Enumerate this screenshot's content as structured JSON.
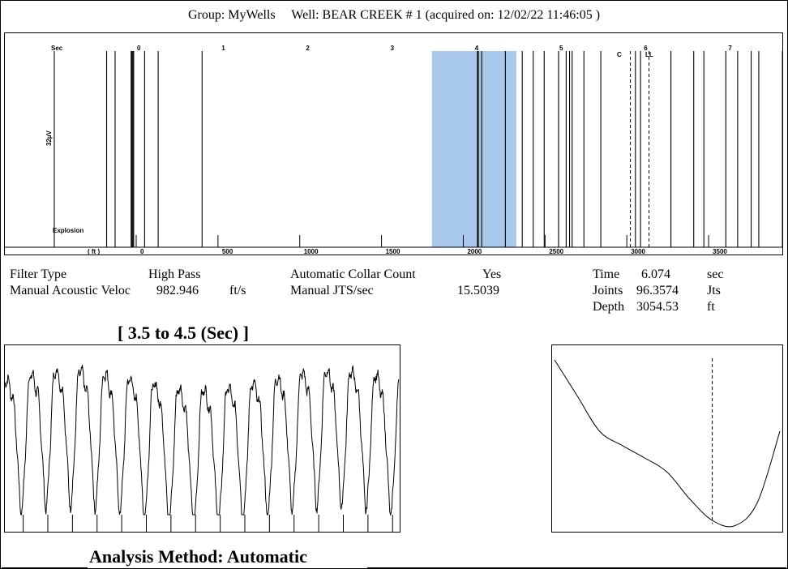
{
  "header": {
    "group_text": "Group: MyWells",
    "well_text": "Well: BEAR CREEK # 1 (acquired on: 12/02/22 11:46:05 )"
  },
  "main_chart": {
    "sec_label": "Sec",
    "ft_label": "( ft )",
    "gain_label": "32µV",
    "explosion_label": "Explosion",
    "collar_labels": [
      "C",
      "LL"
    ],
    "sec_ticks": [
      "0",
      "1",
      "2",
      "3",
      "4",
      "5",
      "6",
      "7"
    ],
    "ft_ticks": [
      "0",
      "500",
      "1000",
      "1500",
      "2000",
      "2500",
      "3000",
      "3500"
    ]
  },
  "params": {
    "filter_type_label": "Filter Type",
    "filter_type_value": "High Pass",
    "velocity_label": "Manual Acoustic Veloc",
    "velocity_value": "982.946",
    "velocity_unit": "ft/s",
    "collar_count_label": "Automatic Collar Count",
    "collar_count_value": "Yes",
    "jts_label": "Manual JTS/sec",
    "jts_value": "15.5039",
    "time_label": "Time",
    "time_value": "6.074",
    "time_unit": "sec",
    "joints_label": "Joints",
    "joints_value": "96.3574",
    "joints_unit": "Jts",
    "depth_label": "Depth",
    "depth_value": "3054.53",
    "depth_unit": "ft"
  },
  "zoom_title": "[ 3.5  to  4.5 (Sec) ]",
  "analysis_method": "Analysis Method:   Automatic",
  "colors": {
    "highlight": "#a9c9ec",
    "line": "#000000"
  },
  "chart_data": [
    {
      "type": "line",
      "name": "acoustic-trace",
      "x_unit": "sec",
      "xlim": [
        -1.0,
        7.8
      ],
      "highlight_range_sec": [
        3.5,
        4.5
      ],
      "sec_ticks": [
        0,
        1,
        2,
        3,
        4,
        5,
        6,
        7
      ],
      "ft_ticks": [
        0,
        500,
        1000,
        1500,
        2000,
        2500,
        3000,
        3500
      ],
      "event_lines_sec": [
        -0.97,
        -0.35,
        -0.25,
        -0.06,
        -0.05,
        -0.04,
        -0.03,
        0.1,
        0.26,
        0.78,
        4.04,
        4.05,
        4.09,
        4.37,
        4.57,
        4.7,
        4.83,
        5.0,
        5.09,
        5.13,
        5.16,
        5.3,
        5.5,
        5.91,
        5.97,
        6.33,
        6.6,
        6.72,
        6.98,
        7.12,
        7.28,
        7.37,
        7.65
      ],
      "dashed_lines_sec": [
        5.85,
        6.07
      ]
    },
    {
      "type": "line",
      "name": "zoomed-trace",
      "x_range_sec": [
        3.5,
        4.5
      ],
      "cycles": 16,
      "ylim": [
        -1,
        1
      ]
    },
    {
      "type": "line",
      "name": "autocorrelation",
      "x": [
        0,
        0.1,
        0.2,
        0.3,
        0.4,
        0.5,
        0.6,
        0.7,
        0.8,
        0.9,
        1.0
      ],
      "y": [
        0.95,
        0.75,
        0.55,
        0.47,
        0.4,
        0.32,
        0.17,
        0.05,
        0.02,
        0.15,
        0.55
      ],
      "marker_x": 0.7
    }
  ]
}
